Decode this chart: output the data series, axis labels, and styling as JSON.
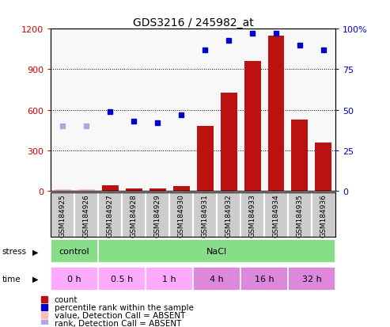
{
  "title": "GDS3216 / 245982_at",
  "samples": [
    "GSM184925",
    "GSM184926",
    "GSM184927",
    "GSM184928",
    "GSM184929",
    "GSM184930",
    "GSM184931",
    "GSM184932",
    "GSM184933",
    "GSM184934",
    "GSM184935",
    "GSM184936"
  ],
  "count_values": [
    10,
    10,
    40,
    20,
    20,
    35,
    480,
    730,
    960,
    1150,
    530,
    360
  ],
  "percentile_values": [
    40,
    40,
    49,
    43,
    42,
    47,
    87,
    93,
    97,
    97,
    90,
    87
  ],
  "absent_mask": [
    true,
    true,
    false,
    false,
    false,
    false,
    false,
    false,
    false,
    false,
    false,
    false
  ],
  "ylim_left": [
    0,
    1200
  ],
  "ylim_right": [
    0,
    100
  ],
  "yticks_left": [
    0,
    300,
    600,
    900,
    1200
  ],
  "ytick_labels_left": [
    "0",
    "300",
    "600",
    "900",
    "1200"
  ],
  "ytick_labels_right": [
    "0",
    "25",
    "50",
    "75",
    "100%"
  ],
  "stress_groups": [
    {
      "text": "control",
      "start": 0,
      "end": 2,
      "color": "#88dd88"
    },
    {
      "text": "NaCl",
      "start": 2,
      "end": 12,
      "color": "#88dd88"
    }
  ],
  "time_groups": [
    {
      "text": "0 h",
      "start": 0,
      "end": 2,
      "color": "#ffaaff"
    },
    {
      "text": "0.5 h",
      "start": 2,
      "end": 4,
      "color": "#ffaaff"
    },
    {
      "text": "1 h",
      "start": 4,
      "end": 6,
      "color": "#ffaaff"
    },
    {
      "text": "4 h",
      "start": 6,
      "end": 8,
      "color": "#dd88dd"
    },
    {
      "text": "16 h",
      "start": 8,
      "end": 10,
      "color": "#dd88dd"
    },
    {
      "text": "32 h",
      "start": 10,
      "end": 12,
      "color": "#dd88dd"
    }
  ],
  "bar_color": "#bb1111",
  "dot_color": "#0000cc",
  "absent_dot_color": "#aaaadd",
  "absent_bar_color": "#ffbbbb",
  "bg_color": "#ffffff",
  "sample_bg_color": "#cccccc",
  "grid_color": "#000000",
  "label_color_left": "#cc0000",
  "label_color_right": "#0000cc",
  "legend_items": [
    {
      "color": "#bb1111",
      "label": "count"
    },
    {
      "color": "#0000cc",
      "label": "percentile rank within the sample"
    },
    {
      "color": "#ffbbbb",
      "label": "value, Detection Call = ABSENT"
    },
    {
      "color": "#aaaadd",
      "label": "rank, Detection Call = ABSENT"
    }
  ]
}
